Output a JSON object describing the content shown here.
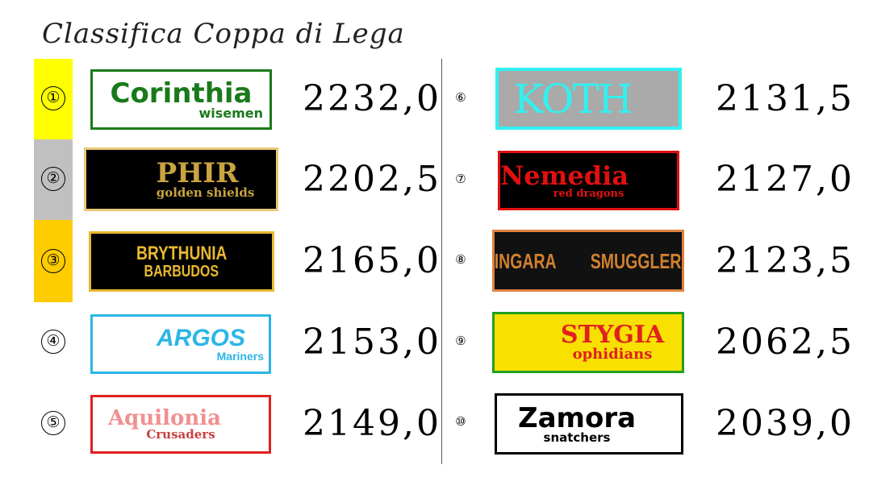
{
  "title": "Classifica Coppa di Lega",
  "colors": {
    "first": "#ffff00",
    "second": "#c0c0c0",
    "third": "#ffcc00"
  },
  "teams": [
    {
      "rank": "①",
      "name": "Corinthia",
      "sub": "wisemen",
      "score": "2232,0"
    },
    {
      "rank": "②",
      "name": "PHIR",
      "sub": "golden shields",
      "score": "2202,5"
    },
    {
      "rank": "③",
      "name": "BRYTHUNIA",
      "sub": "BARBUDOS",
      "score": "2165,0"
    },
    {
      "rank": "④",
      "name": "ARGOS",
      "sub": "Mariners",
      "score": "2153,0"
    },
    {
      "rank": "⑤",
      "name": "Aquilonia",
      "sub": "Crusaders",
      "score": "2149,0"
    },
    {
      "rank": "⑥",
      "name": "KOTH",
      "sub": "",
      "score": "2131,5"
    },
    {
      "rank": "⑦",
      "name": "Nemedia",
      "sub": "red dragons",
      "score": "2127,0"
    },
    {
      "rank": "⑧",
      "name": "ZINGARA SMUGGLERS",
      "sub": "",
      "score": "2123,5"
    },
    {
      "rank": "⑨",
      "name": "STYGIA",
      "sub": "ophidians",
      "score": "2062,5"
    },
    {
      "rank": "⑩",
      "name": "Zamora",
      "sub": "snatchers",
      "score": "2039,0"
    }
  ]
}
